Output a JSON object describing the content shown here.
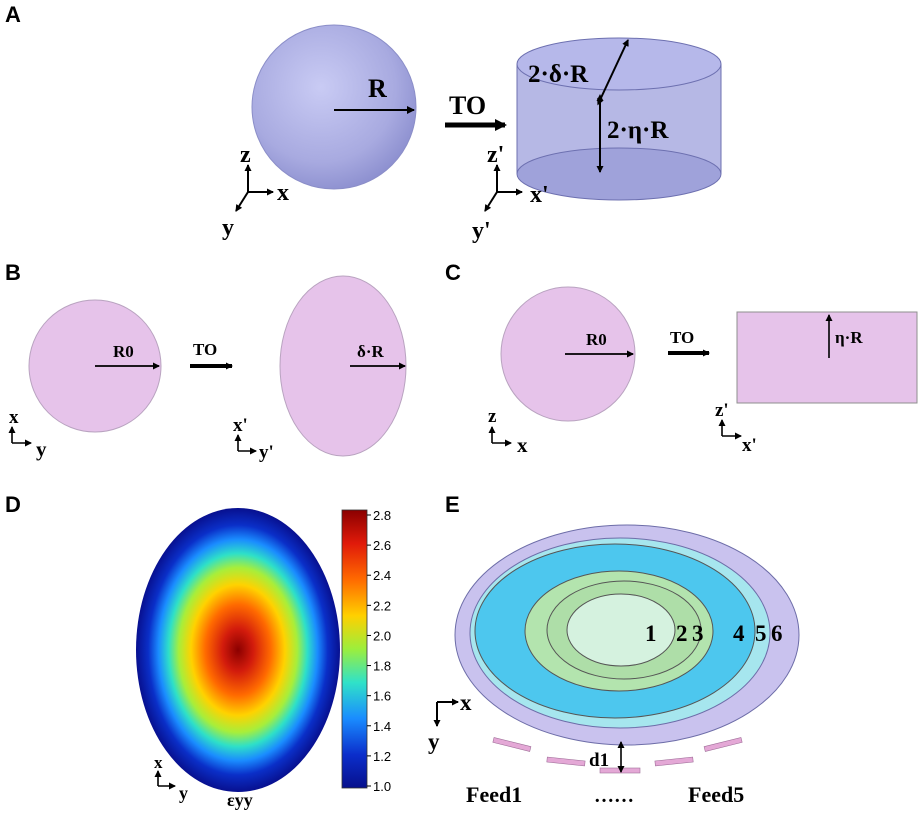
{
  "panels": {
    "a": {
      "letter": "A",
      "radius_label": "R",
      "arrow_label": "TO",
      "width_label": "2·δ·R",
      "height_label": "2·η·R",
      "axes_left": {
        "up": "z",
        "right": "x",
        "down": "y"
      },
      "axes_right": {
        "up": "z'",
        "right": "x'",
        "down": "y'"
      }
    },
    "b": {
      "letter": "B",
      "radius_label": "R0",
      "arrow_label": "TO",
      "ellipse_label": "δ·R",
      "axes_left": {
        "up": "x",
        "right": "y"
      },
      "axes_right": {
        "up": "x'",
        "right": "y'"
      }
    },
    "c": {
      "letter": "C",
      "radius_label": "R0",
      "arrow_label": "TO",
      "rect_label": "η·R",
      "axes_left": {
        "up": "z",
        "right": "x"
      },
      "axes_right": {
        "up": "z'",
        "right": "x'"
      }
    },
    "d": {
      "letter": "D",
      "colorbar_ticks": [
        "2.8",
        "2.6",
        "2.4",
        "2.2",
        "2.0",
        "1.8",
        "1.6",
        "1.4",
        "1.2",
        "1.0"
      ],
      "colorbar_label": "εyy",
      "axes": {
        "up": "x",
        "right": "y"
      }
    },
    "e": {
      "letter": "E",
      "ring_labels": [
        "1",
        "2",
        "3",
        "4",
        "5",
        "6"
      ],
      "distance_label": "d1",
      "feed_first": "Feed1",
      "feed_dots": "……",
      "feed_last": "Feed5",
      "axes": {
        "right": "x",
        "down": "y"
      }
    }
  },
  "colors": {
    "sphere": "#a7a9e0",
    "lens2d": "#e6c3ea",
    "ring_outer": "#c9c2ee",
    "ring_cyan_light": "#a6e6ee",
    "ring_blue": "#4dc7ee",
    "ring_green": "#b3e4ae",
    "ring_center": "#d5f2df",
    "feed": "#e4a8d6"
  }
}
